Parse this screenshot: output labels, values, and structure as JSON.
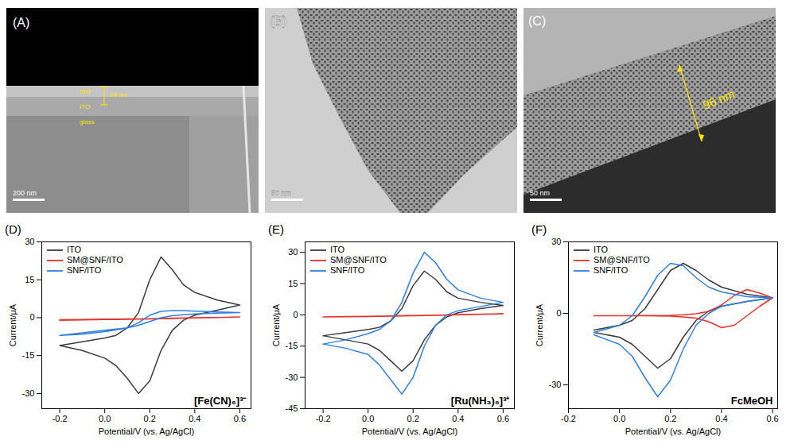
{
  "images": [
    {
      "label": "(A)",
      "scale_bar": "200 nm",
      "annotations": [
        "SNF",
        "99 nm",
        "ITO",
        "glass"
      ]
    },
    {
      "label": "(B)",
      "scale_bar": "50 nm"
    },
    {
      "label": "(C)",
      "scale_bar": "50 nm",
      "annotations": [
        "96 nm"
      ]
    }
  ],
  "chart_data": [
    {
      "type": "line",
      "panel_label": "(D)",
      "annotation": "[Fe(CN)₆]³⁻",
      "x_label": "Potential/V (vs. Ag/AgCl)",
      "y_label": "Current/μA",
      "xlim": [
        -0.28,
        0.65
      ],
      "xticks": [
        -0.2,
        {
          "value": 0,
          "label": "0.0"
        },
        0.2,
        0.4,
        0.6
      ],
      "ylim": [
        -36,
        30
      ],
      "yticks": [
        -30,
        -15,
        0,
        15,
        30
      ],
      "legend": "top-left",
      "series": [
        {
          "name": "ITO",
          "color": "#3c3c3c",
          "x": [
            -0.2,
            -0.1,
            0,
            0.05,
            0.1,
            0.15,
            0.2,
            0.25,
            0.3,
            0.35,
            0.4,
            0.5,
            0.6,
            0.5,
            0.4,
            0.35,
            0.3,
            0.25,
            0.2,
            0.15,
            0.1,
            0.05,
            0,
            -0.1,
            -0.2
          ],
          "values": [
            -11,
            -9.5,
            -8,
            -7,
            -4,
            2,
            15,
            24,
            19,
            13,
            10,
            7,
            5,
            3,
            1,
            -1,
            -5,
            -13,
            -25,
            -30,
            -24,
            -19,
            -16,
            -13,
            -11
          ]
        },
        {
          "name": "SM@SNF/ITO",
          "color": "#e8302a",
          "x": [
            -0.2,
            -0.1,
            0,
            0.05,
            0.1,
            0.15,
            0.2,
            0.25,
            0.3,
            0.35,
            0.4,
            0.5,
            0.6,
            0.5,
            0.4,
            0.35,
            0.3,
            0.25,
            0.2,
            0.15,
            0.1,
            0.05,
            0,
            -0.1,
            -0.2
          ],
          "values": [
            -0.8,
            -0.7,
            -0.6,
            -0.55,
            -0.5,
            -0.45,
            -0.4,
            -0.3,
            -0.2,
            -0.1,
            0,
            0.1,
            0.3,
            0.1,
            -0.1,
            -0.2,
            -0.3,
            -0.4,
            -0.5,
            -0.6,
            -0.65,
            -0.7,
            -0.75,
            -0.85,
            -1
          ]
        },
        {
          "name": "SNF/ITO",
          "color": "#2f7fe0",
          "x": [
            -0.2,
            -0.1,
            0,
            0.05,
            0.1,
            0.15,
            0.2,
            0.25,
            0.3,
            0.35,
            0.4,
            0.5,
            0.6,
            0.5,
            0.4,
            0.35,
            0.3,
            0.25,
            0.2,
            0.15,
            0.1,
            0.05,
            0,
            -0.1,
            -0.2
          ],
          "values": [
            -7,
            -6,
            -5,
            -4.5,
            -4,
            -2,
            1,
            2.5,
            2.8,
            2.8,
            2.6,
            2.3,
            2,
            1.8,
            1.5,
            1.2,
            0.8,
            0,
            -1.5,
            -3,
            -4,
            -4.8,
            -5.5,
            -6.5,
            -7
          ]
        }
      ]
    },
    {
      "type": "line",
      "panel_label": "(E)",
      "annotation": "[Ru(NH₃)₆]³⁺",
      "x_label": "Potential/V (vs. Ag/AgCl)",
      "y_label": "Current/μA",
      "xlim": [
        -0.28,
        0.65
      ],
      "xticks": [
        -0.2,
        {
          "value": 0,
          "label": "0.0"
        },
        0.2,
        0.4,
        0.6
      ],
      "ylim": [
        -45,
        35
      ],
      "yticks": [
        -45,
        -30,
        -15,
        0,
        15,
        30
      ],
      "legend": "top-left",
      "series": [
        {
          "name": "ITO",
          "color": "#3c3c3c",
          "x": [
            -0.2,
            -0.1,
            0,
            0.05,
            0.1,
            0.15,
            0.2,
            0.25,
            0.3,
            0.35,
            0.4,
            0.5,
            0.6,
            0.5,
            0.4,
            0.35,
            0.3,
            0.25,
            0.2,
            0.15,
            0.1,
            0.05,
            0,
            -0.1,
            -0.2
          ],
          "values": [
            -10,
            -8.5,
            -7,
            -6,
            -3,
            3,
            14,
            21,
            17,
            11,
            8,
            6,
            4.5,
            3,
            1,
            -1,
            -5,
            -12,
            -22,
            -27,
            -22,
            -17,
            -14,
            -12,
            -10
          ]
        },
        {
          "name": "SM@SNF/ITO",
          "color": "#e8302a",
          "x": [
            -0.2,
            -0.1,
            0,
            0.05,
            0.1,
            0.15,
            0.2,
            0.25,
            0.3,
            0.35,
            0.4,
            0.5,
            0.6,
            0.5,
            0.4,
            0.35,
            0.3,
            0.25,
            0.2,
            0.15,
            0.1,
            0.05,
            0,
            -0.1,
            -0.2
          ],
          "values": [
            -1,
            -0.9,
            -0.8,
            -0.7,
            -0.6,
            -0.5,
            -0.4,
            -0.3,
            -0.2,
            -0.1,
            0,
            0.2,
            0.5,
            0.3,
            0.1,
            0,
            -0.1,
            -0.2,
            -0.3,
            -0.4,
            -0.5,
            -0.6,
            -0.7,
            -0.85,
            -1
          ]
        },
        {
          "name": "SNF/ITO",
          "color": "#2f7fe0",
          "x": [
            -0.2,
            -0.1,
            0,
            0.05,
            0.1,
            0.15,
            0.2,
            0.25,
            0.3,
            0.35,
            0.4,
            0.5,
            0.6,
            0.5,
            0.4,
            0.35,
            0.3,
            0.25,
            0.2,
            0.15,
            0.1,
            0.05,
            0,
            -0.1,
            -0.2
          ],
          "values": [
            -14,
            -12,
            -9,
            -7,
            -3,
            6,
            20,
            30,
            25,
            17,
            12,
            8,
            6,
            4,
            2,
            0,
            -5,
            -15,
            -30,
            -38,
            -31,
            -24,
            -19,
            -16,
            -14
          ]
        }
      ]
    },
    {
      "type": "line",
      "panel_label": "(F)",
      "annotation": "FcMeOH",
      "x_label": "Potential/V (vs. Ag/AgCl)",
      "y_label": "Current/μA",
      "xlim": [
        -0.2,
        0.62
      ],
      "xticks": [
        -0.2,
        {
          "value": 0,
          "label": "0.0"
        },
        0.2,
        0.4,
        0.6
      ],
      "ylim": [
        -40,
        30
      ],
      "yticks": [
        -30,
        0,
        30
      ],
      "legend": "top-left",
      "series": [
        {
          "name": "ITO",
          "color": "#3c3c3c",
          "x": [
            -0.1,
            0,
            0.05,
            0.1,
            0.15,
            0.2,
            0.25,
            0.3,
            0.35,
            0.4,
            0.5,
            0.6,
            0.5,
            0.4,
            0.35,
            0.3,
            0.25,
            0.2,
            0.15,
            0.1,
            0.05,
            0,
            -0.1
          ],
          "values": [
            -7,
            -5,
            -3,
            2,
            10,
            18,
            21,
            18,
            14,
            11,
            8,
            6.5,
            5,
            3,
            1,
            -3,
            -10,
            -19,
            -23,
            -18,
            -13,
            -10,
            -8
          ]
        },
        {
          "name": "SM@SNF/ITO",
          "color": "#e8302a",
          "x": [
            -0.1,
            0,
            0.1,
            0.2,
            0.25,
            0.3,
            0.35,
            0.4,
            0.45,
            0.5,
            0.55,
            0.6,
            0.55,
            0.5,
            0.45,
            0.4,
            0.35,
            0.3,
            0.25,
            0.2,
            0.1,
            0,
            -0.1
          ],
          "values": [
            -1,
            -1,
            -0.9,
            -0.8,
            -0.6,
            -0.2,
            0.8,
            3.5,
            7.5,
            10,
            8.5,
            6.5,
            3,
            -1,
            -5,
            -6,
            -3.5,
            -2,
            -1.5,
            -1.2,
            -1,
            -1,
            -1
          ]
        },
        {
          "name": "SNF/ITO",
          "color": "#2f7fe0",
          "x": [
            -0.1,
            0,
            0.05,
            0.1,
            0.15,
            0.2,
            0.25,
            0.3,
            0.35,
            0.4,
            0.5,
            0.6,
            0.5,
            0.4,
            0.35,
            0.3,
            0.25,
            0.2,
            0.15,
            0.1,
            0.05,
            0,
            -0.1
          ],
          "values": [
            -8,
            -5,
            -1,
            7,
            16,
            21,
            20,
            15,
            11,
            9,
            7,
            6.5,
            5,
            3,
            0,
            -5,
            -15,
            -28,
            -35,
            -27,
            -18,
            -13,
            -9
          ]
        }
      ]
    }
  ]
}
